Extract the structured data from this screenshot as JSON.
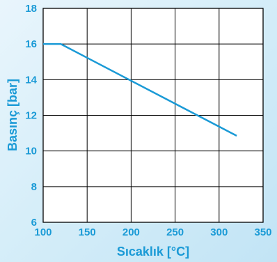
{
  "chart_data": {
    "type": "line",
    "xlabel": "Sıcaklık [°C]",
    "ylabel": "Basınç [bar]",
    "xlim": [
      100,
      350
    ],
    "ylim": [
      6,
      18
    ],
    "x_ticks": [
      100,
      150,
      200,
      250,
      300,
      350
    ],
    "y_ticks": [
      6,
      8,
      10,
      12,
      14,
      16,
      18
    ],
    "x_tick_labels": [
      "100",
      "150",
      "200",
      "250",
      "300",
      "350"
    ],
    "y_tick_labels": [
      "6",
      "8",
      "10",
      "12",
      "14",
      "16",
      "18"
    ],
    "grid": true,
    "series": [
      {
        "x": [
          100,
          120,
          320
        ],
        "y": [
          16.0,
          16.0,
          10.85
        ]
      }
    ]
  },
  "colors": {
    "accent": "#1a9ad6",
    "plot_background": "#ffffff",
    "grid": "#000000",
    "line": "#1a9ad6"
  }
}
